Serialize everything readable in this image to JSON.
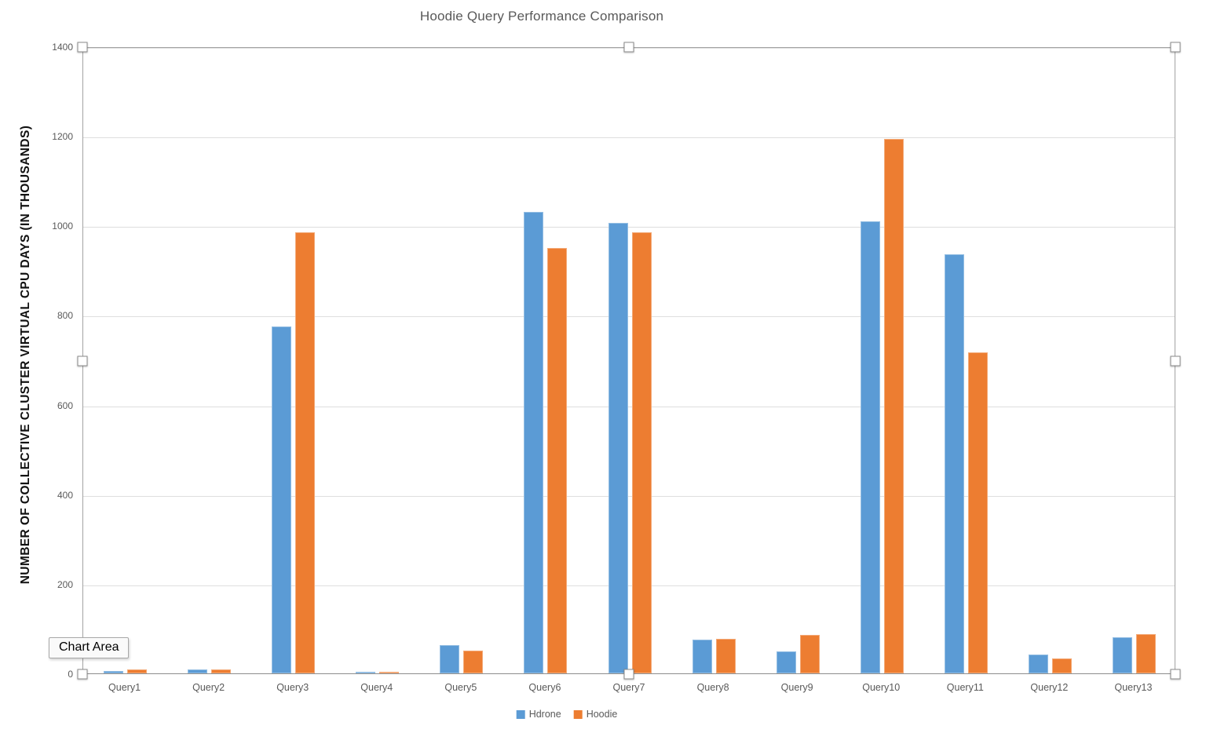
{
  "chart_data": {
    "type": "bar",
    "title": "Hoodie Query Performance Comparison",
    "xlabel": "",
    "ylabel": "NUMBER OF COLLECTIVE CLUSTER VIRTUAL CPU DAYS (IN THOUSANDS)",
    "categories": [
      "Query1",
      "Query2",
      "Query3",
      "Query4",
      "Query5",
      "Query6",
      "Query7",
      "Query8",
      "Query9",
      "Query10",
      "Query11",
      "Query12",
      "Query13"
    ],
    "series": [
      {
        "name": "Hdrone",
        "color": "#5B9BD5",
        "values": [
          5,
          9,
          775,
          4,
          63,
          1030,
          1005,
          75,
          49,
          1009,
          935,
          42,
          81
        ]
      },
      {
        "name": "Hoodie",
        "color": "#ED7D31",
        "values": [
          8,
          8,
          984,
          4,
          50,
          949,
          984,
          77,
          86,
          1193,
          717,
          33,
          88
        ]
      }
    ],
    "ylim": [
      0,
      1400
    ],
    "yticks": [
      0,
      200,
      400,
      600,
      800,
      1000,
      1200,
      1400
    ],
    "grid": true,
    "legend_position": "bottom"
  },
  "overlay": {
    "tooltip_label": "Chart Area"
  },
  "colors": {
    "series_blue": "#5B9BD5",
    "series_orange": "#ED7D31",
    "gridline": "#dedede",
    "axis_text": "#595959",
    "selection_border": "#a3a3a3"
  }
}
